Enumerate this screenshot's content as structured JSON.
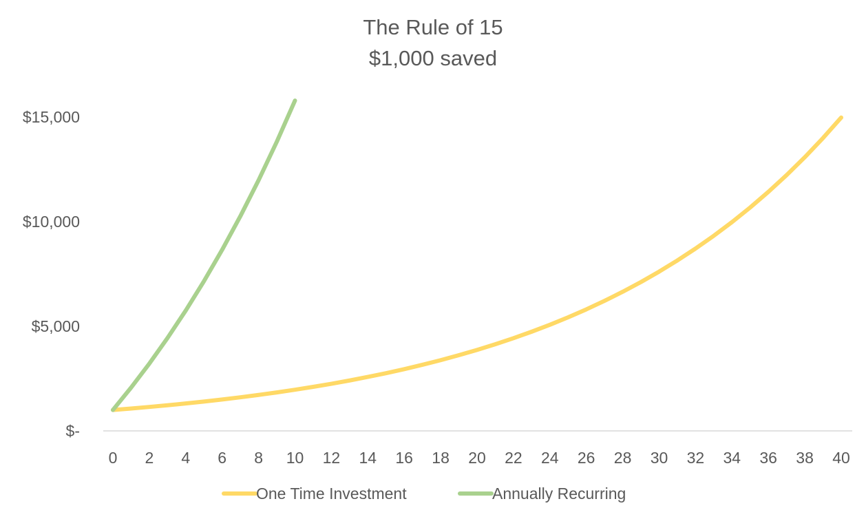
{
  "chart_data": {
    "type": "line",
    "title": "The Rule of 15",
    "subtitle": "$1,000 saved",
    "xlabel": "",
    "ylabel": "",
    "x_ticks": [
      "0",
      "2",
      "4",
      "6",
      "8",
      "10",
      "12",
      "14",
      "16",
      "18",
      "20",
      "22",
      "24",
      "26",
      "28",
      "30",
      "32",
      "34",
      "36",
      "38",
      "40"
    ],
    "y_ticks": [
      {
        "value": 0,
        "label": "$-"
      },
      {
        "value": 5000,
        "label": "$5,000"
      },
      {
        "value": 10000,
        "label": "$10,000"
      },
      {
        "value": 15000,
        "label": "$15,000"
      }
    ],
    "xlim": [
      0,
      40
    ],
    "ylim": [
      0,
      15000
    ],
    "grid": false,
    "legend_position": "bottom",
    "series": [
      {
        "name": "One Time Investment",
        "color": "#FFD966",
        "x": [
          0,
          1,
          2,
          3,
          4,
          5,
          6,
          7,
          8,
          9,
          10,
          11,
          12,
          13,
          14,
          15,
          16,
          17,
          18,
          19,
          20,
          21,
          22,
          23,
          24,
          25,
          26,
          27,
          28,
          29,
          30,
          31,
          32,
          33,
          34,
          35,
          36,
          37,
          38,
          39,
          40
        ],
        "values": [
          1000,
          1070,
          1145,
          1225,
          1311,
          1403,
          1501,
          1606,
          1718,
          1838,
          1967,
          2105,
          2252,
          2410,
          2579,
          2759,
          2952,
          3159,
          3380,
          3617,
          3870,
          4141,
          4430,
          4741,
          5072,
          5427,
          5807,
          6214,
          6649,
          7114,
          7612,
          8145,
          8715,
          9325,
          9978,
          10677,
          11424,
          12224,
          13079,
          13995,
          14974
        ]
      },
      {
        "name": "Annually Recurring",
        "color": "#A9D18E",
        "x": [
          0,
          1,
          2,
          3,
          4,
          5,
          6,
          7,
          8,
          9,
          10
        ],
        "values": [
          1000,
          2070,
          3215,
          4440,
          5751,
          7153,
          8654,
          10260,
          11978,
          13816,
          15784
        ]
      }
    ]
  }
}
